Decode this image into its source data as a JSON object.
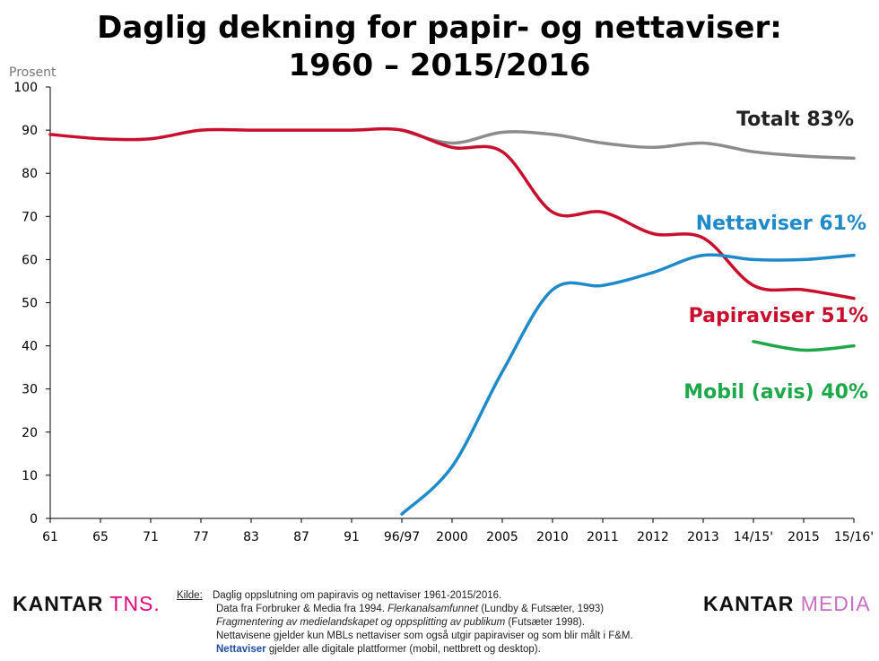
{
  "chart_data": {
    "type": "line",
    "title_line1": "Daglig dekning for papir- og nettaviser:",
    "title_line2": "1960 – 2015/2016",
    "ylabel": "Prosent",
    "ylim": [
      0,
      100
    ],
    "yticks": [
      0,
      10,
      20,
      30,
      40,
      50,
      60,
      70,
      80,
      90,
      100
    ],
    "categories": [
      "61",
      "65",
      "71",
      "77",
      "83",
      "87",
      "91",
      "96/97",
      "2000",
      "2005",
      "2010",
      "2011",
      "2012",
      "2013",
      "14/15'",
      "2015",
      "15/16'"
    ],
    "series": [
      {
        "name": "Totalt 83%",
        "color": "#8c8c8c",
        "values": [
          null,
          null,
          null,
          null,
          null,
          null,
          null,
          90,
          87,
          89.5,
          89,
          87,
          86,
          87,
          85,
          84,
          83.5
        ]
      },
      {
        "name": "Papiraviser 51%",
        "color": "#c8102e",
        "values": [
          89,
          88,
          88,
          90,
          90,
          90,
          90,
          90,
          86,
          85,
          71,
          71,
          66,
          65,
          54,
          53,
          51
        ]
      },
      {
        "name": "Nettaviser 61%",
        "color": "#1f8ac9",
        "values": [
          null,
          null,
          null,
          null,
          null,
          null,
          null,
          1,
          12,
          34,
          53,
          54,
          57,
          61,
          60,
          60,
          61
        ]
      },
      {
        "name": "Mobil (avis) 40%",
        "color": "#1ea84a",
        "values": [
          null,
          null,
          null,
          null,
          null,
          null,
          null,
          null,
          null,
          null,
          null,
          null,
          null,
          null,
          41,
          39,
          40
        ]
      }
    ]
  },
  "footer": {
    "logo_left_a": "KANTAR",
    "logo_left_b": "TNS.",
    "logo_right_a": "KANTAR",
    "logo_right_b": "MEDIA",
    "source_key": "Kilde:",
    "source_line1": "Daglig oppslutning om papiravis og nettaviser 1961-2015/2016.",
    "source_line2a": "Data fra Forbruker & Media fra 1994. ",
    "source_line2b": "Flerkanalsamfunnet",
    "source_line2c": " (Lundby & Futsæter, 1993)",
    "source_line3a": "Fragmentering av medielandskapet og oppsplitting av publikum",
    "source_line3b": " (Futsæter 1998).",
    "source_line4": "Nettavisene gjelder kun MBLs nettaviser som også utgir papiraviser og som blir målt i F&M.",
    "source_line5a": "Nettaviser",
    "source_line5b": " gjelder alle digitale plattformer (mobil, nettbrett og desktop)."
  }
}
